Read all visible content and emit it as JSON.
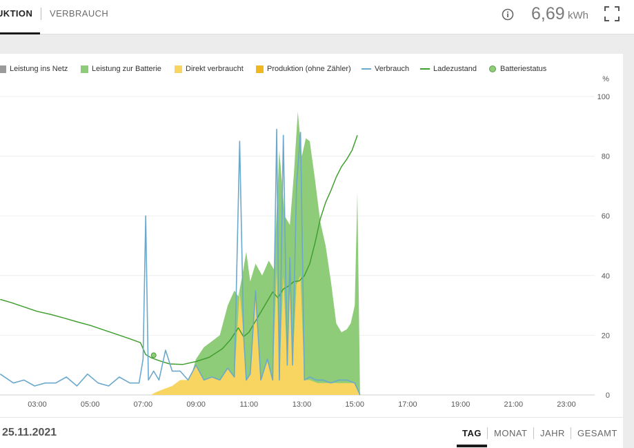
{
  "tabs": [
    {
      "label": "PRODUKTION",
      "visible_label": "UKTION",
      "active": true
    },
    {
      "label": "VERBRAUCH",
      "active": false
    }
  ],
  "header": {
    "total_value": "6,69",
    "total_unit": "kWh",
    "info_icon": "info-icon",
    "fullscreen_icon": "fullscreen-icon"
  },
  "legend": [
    {
      "label": "Leistung ins Netz",
      "kind": "area",
      "color": "#9a9a9a"
    },
    {
      "label": "Leistung zur Batterie",
      "kind": "area",
      "color": "#8fcc7a"
    },
    {
      "label": "Direkt verbraucht",
      "kind": "area",
      "color": "#f7d560"
    },
    {
      "label": "Produktion (ohne Zähler)",
      "kind": "area",
      "color": "#efb81e"
    },
    {
      "label": "Verbrauch",
      "kind": "line",
      "color": "#6aa8cc"
    },
    {
      "label": "Ladezustand",
      "kind": "line",
      "color": "#3f9f2e"
    },
    {
      "label": "Batteriestatus",
      "kind": "dot",
      "color": "#8fcc7a"
    }
  ],
  "chart_data": {
    "type": "area",
    "right_axis_unit": "%",
    "y_ticks": [
      "100",
      "80",
      "60",
      "40",
      "20",
      "0"
    ],
    "x_ticks": [
      "03:00",
      "05:00",
      "07:00",
      "09:00",
      "11:00",
      "13:00",
      "15:00",
      "17:00",
      "19:00",
      "21:00",
      "23:00"
    ],
    "ylim": [
      0,
      100
    ],
    "x_unit": "hours",
    "grid": true,
    "series": [
      {
        "name": "Ladezustand",
        "kind": "line",
        "color": "#3f9f2e",
        "x": [
          1.6,
          2.0,
          2.5,
          3.0,
          3.5,
          4.0,
          4.5,
          5.0,
          5.5,
          6.0,
          6.5,
          6.9,
          7.1,
          7.3,
          7.6,
          8.0,
          8.5,
          9.0,
          9.5,
          10.0,
          10.3,
          10.6,
          10.8,
          11.0,
          11.3,
          11.6,
          11.9,
          12.1,
          12.3,
          12.5,
          12.7,
          12.9,
          13.1,
          13.3,
          13.5,
          13.7,
          13.9,
          14.1,
          14.3,
          14.5,
          14.7,
          14.9,
          15.1
        ],
        "y": [
          32,
          31,
          29.5,
          28,
          27,
          25.8,
          24.5,
          23.3,
          21.8,
          20.3,
          18.8,
          17.5,
          13.5,
          12.5,
          11.5,
          10.4,
          10.2,
          11.2,
          12.6,
          15.5,
          18.5,
          22.5,
          19.5,
          21,
          25.5,
          30,
          34.5,
          32.5,
          35.5,
          36.5,
          38,
          38.2,
          40,
          44,
          51,
          59,
          64.5,
          68.5,
          73,
          76.5,
          79,
          82,
          87
        ]
      },
      {
        "name": "Verbrauch",
        "kind": "line",
        "color": "#6aa8cc",
        "x": [
          1.6,
          2.1,
          2.5,
          2.9,
          3.3,
          3.7,
          4.1,
          4.5,
          4.9,
          5.3,
          5.7,
          6.1,
          6.5,
          6.85,
          7.0,
          7.1,
          7.2,
          7.4,
          7.6,
          7.85,
          8.1,
          8.4,
          8.7,
          9.0,
          9.3,
          9.6,
          9.9,
          10.2,
          10.45,
          10.65,
          10.8,
          10.9,
          11.05,
          11.25,
          11.45,
          11.7,
          11.9,
          12.05,
          12.15,
          12.3,
          12.45,
          12.55,
          12.65,
          12.8,
          12.95,
          13.1,
          13.3,
          13.55,
          13.8,
          14.1,
          14.4,
          14.7,
          15.0,
          15.2
        ],
        "y": [
          7,
          4,
          5,
          3,
          4,
          4,
          6,
          3,
          7,
          4,
          3,
          6,
          4,
          4,
          12,
          60,
          5,
          8,
          5,
          15,
          8,
          8,
          5,
          10,
          5,
          6,
          5,
          9,
          6,
          85,
          20,
          5,
          7,
          35,
          5,
          12,
          5,
          89,
          5,
          87,
          10,
          46,
          10,
          70,
          88,
          5,
          6,
          5,
          5,
          4,
          5,
          5,
          4,
          0
        ]
      },
      {
        "name": "Leistung zur Batterie",
        "kind": "area",
        "color": "#8fcc7a",
        "x": [
          8.7,
          9.0,
          9.3,
          9.6,
          9.9,
          10.2,
          10.45,
          10.6,
          10.75,
          10.9,
          11.05,
          11.25,
          11.5,
          11.75,
          11.95,
          12.15,
          12.35,
          12.55,
          12.7,
          12.85,
          13.0,
          13.15,
          13.3,
          13.5,
          13.7,
          13.9,
          14.1,
          14.3,
          14.5,
          14.7,
          14.85,
          15.0,
          15.1,
          15.2
        ],
        "y": [
          3,
          12,
          16,
          18,
          20,
          30,
          35,
          33,
          40,
          48,
          38,
          44,
          40,
          45,
          42,
          82,
          60,
          57,
          74,
          95,
          80,
          86,
          85,
          72,
          58,
          50,
          38,
          24,
          21,
          22,
          24,
          30,
          68,
          0
        ]
      },
      {
        "name": "Direkt verbraucht",
        "kind": "area",
        "color": "#f7d560",
        "x": [
          7.3,
          7.5,
          7.8,
          8.1,
          8.4,
          8.7,
          9.0,
          9.3,
          9.6,
          9.9,
          10.2,
          10.45,
          10.65,
          10.8,
          10.9,
          11.05,
          11.25,
          11.45,
          11.7,
          11.9,
          12.05,
          12.15,
          12.3,
          12.45,
          12.55,
          12.65,
          12.8,
          12.95,
          13.1,
          13.3,
          13.6,
          14.0,
          14.5,
          15.0,
          15.2
        ],
        "y": [
          0,
          1,
          2,
          3,
          5,
          5,
          10,
          5,
          6,
          5,
          9,
          6,
          35,
          20,
          5,
          7,
          35,
          5,
          12,
          5,
          42,
          5,
          40,
          10,
          35,
          10,
          37,
          40,
          5,
          5,
          4,
          4,
          4,
          4,
          0
        ]
      }
    ],
    "markers": [
      {
        "name": "Batteriestatus",
        "x": 7.4,
        "y": 13.3
      }
    ]
  },
  "footer": {
    "date": "25.11.2021",
    "periods": [
      {
        "label": "TAG",
        "active": true
      },
      {
        "label": "MONAT",
        "active": false
      },
      {
        "label": "JAHR",
        "active": false
      },
      {
        "label": "GESAMT",
        "active": false
      }
    ]
  }
}
